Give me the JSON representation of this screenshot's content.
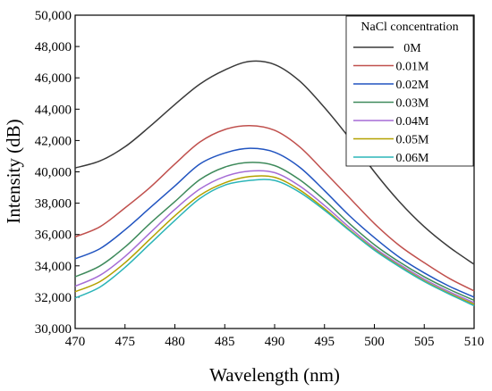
{
  "chart_data": {
    "type": "line",
    "title": "",
    "xlabel": "Wavelength (nm)",
    "ylabel": "Intensity (dB)",
    "xlim": [
      470,
      510
    ],
    "ylim": [
      30000,
      50000
    ],
    "xticks": [
      470,
      475,
      480,
      485,
      490,
      495,
      500,
      505,
      510
    ],
    "yticks": [
      30000,
      32000,
      34000,
      36000,
      38000,
      40000,
      42000,
      44000,
      46000,
      48000,
      50000
    ],
    "xtick_labels": [
      "470",
      "475",
      "480",
      "485",
      "490",
      "495",
      "500",
      "505",
      "510"
    ],
    "ytick_labels": [
      "30,000",
      "32,000",
      "34,000",
      "36,000",
      "38,000",
      "40,000",
      "42,000",
      "44,000",
      "46,000",
      "48,000",
      "50,000"
    ],
    "grid": false,
    "legend": {
      "title": "NaCl concentration",
      "placement": "top-right"
    },
    "x": [
      470,
      472.5,
      475,
      477.5,
      480,
      482.5,
      485,
      487.5,
      490,
      492.5,
      495,
      497.5,
      500,
      502.5,
      505,
      507.5,
      510
    ],
    "series": [
      {
        "name": "0M",
        "color": "#3a3a3a",
        "values": [
          40250,
          40700,
          41600,
          42900,
          44300,
          45600,
          46500,
          47050,
          46850,
          45800,
          44100,
          42150,
          40000,
          38100,
          36500,
          35200,
          34100
        ]
      },
      {
        "name": "0.01M",
        "color": "#c0504d",
        "values": [
          35850,
          36500,
          37700,
          39000,
          40500,
          41900,
          42700,
          42950,
          42650,
          41600,
          40000,
          38350,
          36700,
          35300,
          34200,
          33200,
          32400
        ]
      },
      {
        "name": "0.02M",
        "color": "#2154c0",
        "values": [
          34450,
          35100,
          36300,
          37700,
          39100,
          40500,
          41200,
          41500,
          41250,
          40300,
          38800,
          37200,
          35800,
          34550,
          33550,
          32700,
          32000
        ]
      },
      {
        "name": "0.03M",
        "color": "#3e8a5b",
        "values": [
          33300,
          34000,
          35200,
          36700,
          38100,
          39500,
          40300,
          40600,
          40400,
          39500,
          38200,
          36700,
          35350,
          34250,
          33300,
          32500,
          31800
        ]
      },
      {
        "name": "0.04M",
        "color": "#a56cd6",
        "values": [
          32700,
          33400,
          34600,
          36100,
          37600,
          38900,
          39700,
          40050,
          39950,
          39100,
          37850,
          36450,
          35150,
          34100,
          33150,
          32350,
          31650
        ]
      },
      {
        "name": "0.05M",
        "color": "#b3a100",
        "values": [
          32350,
          33000,
          34200,
          35700,
          37200,
          38500,
          39300,
          39700,
          39650,
          38850,
          37650,
          36300,
          35050,
          34000,
          33050,
          32250,
          31550
        ]
      },
      {
        "name": "0.06M",
        "color": "#2bb5b8",
        "values": [
          31950,
          32650,
          33900,
          35400,
          36900,
          38300,
          39150,
          39450,
          39450,
          38700,
          37550,
          36250,
          35000,
          33950,
          33000,
          32200,
          31450
        ]
      }
    ]
  }
}
